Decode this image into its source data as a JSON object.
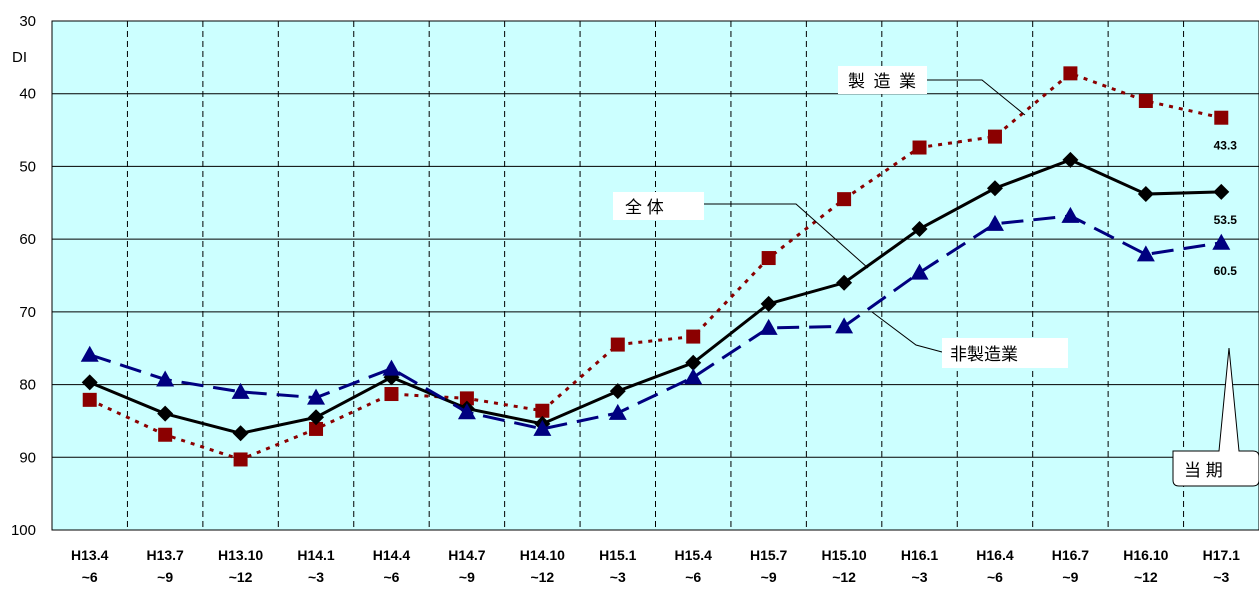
{
  "chart_data": {
    "type": "line",
    "ylabel": "DI",
    "yaxis": {
      "min": 30,
      "max": 100,
      "reversed": true,
      "ticks": [
        "30",
        "40",
        "50",
        "60",
        "70",
        "80",
        "90",
        "100"
      ]
    },
    "grid": "horizontal solid, vertical dashed",
    "plot_background": "#ccffff",
    "categories": [
      {
        "line1": "H13.4",
        "line2": "~6"
      },
      {
        "line1": "H13.7",
        "line2": "~9"
      },
      {
        "line1": "H13.10",
        "line2": "~12"
      },
      {
        "line1": "H14.1",
        "line2": "~3"
      },
      {
        "line1": "H14.4",
        "line2": "~6"
      },
      {
        "line1": "H14.7",
        "line2": "~9"
      },
      {
        "line1": "H14.10",
        "line2": "~12"
      },
      {
        "line1": "H15.1",
        "line2": "~3"
      },
      {
        "line1": "H15.4",
        "line2": "~6"
      },
      {
        "line1": "H15.7",
        "line2": "~9"
      },
      {
        "line1": "H15.10",
        "line2": "~12"
      },
      {
        "line1": "H16.1",
        "line2": "~3"
      },
      {
        "line1": "H16.4",
        "line2": "~6"
      },
      {
        "line1": "H16.7",
        "line2": "~9"
      },
      {
        "line1": "H16.10",
        "line2": "~12"
      },
      {
        "line1": "H17.1",
        "line2": "~3"
      }
    ],
    "series": [
      {
        "name": "製造業",
        "color": "#8b0000",
        "line_style": "dotted",
        "marker": "square",
        "values": [
          82.1,
          86.9,
          90.3,
          86.1,
          81.3,
          81.9,
          83.6,
          74.5,
          73.4,
          62.6,
          54.5,
          47.4,
          45.9,
          37.2,
          41.0,
          43.3
        ],
        "end_label": "43.3"
      },
      {
        "name": "全 体",
        "color": "#000000",
        "line_style": "solid",
        "marker": "diamond",
        "values": [
          79.7,
          84.0,
          86.7,
          84.5,
          79.0,
          83.3,
          85.4,
          80.9,
          77.0,
          68.9,
          66.0,
          58.6,
          53.0,
          49.1,
          53.8,
          53.5
        ],
        "end_label": "53.5"
      },
      {
        "name": "非製造業",
        "color": "#000080",
        "line_style": "dashed",
        "marker": "triangle",
        "values": [
          75.9,
          79.3,
          81.0,
          81.8,
          77.8,
          83.8,
          86.1,
          83.9,
          79.0,
          72.2,
          72.0,
          64.6,
          57.9,
          56.8,
          62.1,
          60.5
        ],
        "end_label": "60.5"
      }
    ],
    "callouts": {
      "current": "当 期"
    }
  }
}
